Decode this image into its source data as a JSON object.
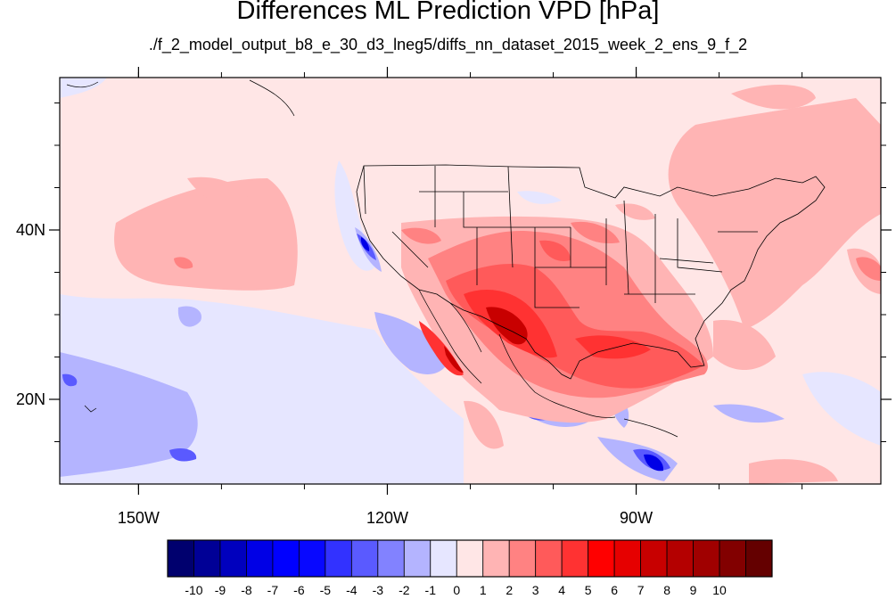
{
  "title": "Differences ML Prediction VPD [hPa]",
  "subtitle": "./f_2_model_output_b8_e_30_d3_lneg5/diffs_nn_dataset_2015_week_2_ens_9_f_2",
  "axes": {
    "lon_ticks": [
      {
        "value": -150,
        "label": "150W"
      },
      {
        "value": -120,
        "label": "120W"
      },
      {
        "value": -90,
        "label": "90W"
      }
    ],
    "lat_ticks": [
      {
        "value": 40,
        "label": "40N"
      },
      {
        "value": 20,
        "label": "20N"
      }
    ],
    "lon_range": [
      -159.5,
      -60.5
    ],
    "lat_range": [
      10,
      58
    ]
  },
  "colorbar": {
    "colors": [
      "#00006e",
      "#000096",
      "#0000be",
      "#0000e6",
      "#0000ff",
      "#0808ff",
      "#3232ff",
      "#5a5aff",
      "#8282ff",
      "#b4b4ff",
      "#e6e6ff",
      "#ffe6e6",
      "#ffb4b4",
      "#ff8282",
      "#ff5a5a",
      "#ff3232",
      "#ff0000",
      "#e60000",
      "#c80000",
      "#b40000",
      "#a00000",
      "#820000",
      "#640000"
    ],
    "labels": [
      "-10",
      "-9",
      "-8",
      "-7",
      "-6",
      "-5",
      "-4",
      "-3",
      "-2",
      "-1",
      "0",
      "1",
      "2",
      "3",
      "4",
      "5",
      "6",
      "7",
      "8",
      "9",
      "10"
    ]
  }
}
